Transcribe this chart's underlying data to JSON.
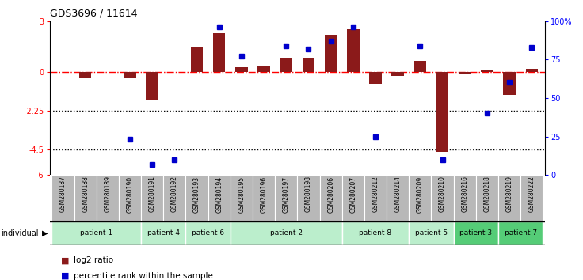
{
  "title": "GDS3696 / 11614",
  "samples": [
    "GSM280187",
    "GSM280188",
    "GSM280189",
    "GSM280190",
    "GSM280191",
    "GSM280192",
    "GSM280193",
    "GSM280194",
    "GSM280195",
    "GSM280196",
    "GSM280197",
    "GSM280198",
    "GSM280206",
    "GSM280207",
    "GSM280212",
    "GSM280214",
    "GSM280209",
    "GSM280210",
    "GSM280216",
    "GSM280218",
    "GSM280219",
    "GSM280222"
  ],
  "log2_ratio": [
    0.0,
    -0.35,
    0.0,
    -0.35,
    -1.65,
    0.0,
    1.5,
    2.3,
    0.3,
    0.4,
    0.85,
    0.85,
    2.2,
    2.5,
    -0.65,
    -0.2,
    0.65,
    -4.65,
    -0.05,
    0.1,
    -1.3,
    0.2
  ],
  "percentile": [
    null,
    null,
    null,
    23,
    7,
    10,
    null,
    96,
    77,
    null,
    84,
    82,
    87,
    96,
    25,
    null,
    84,
    10,
    null,
    40,
    60,
    83
  ],
  "patients": [
    {
      "label": "patient 1",
      "start": 0,
      "end": 4,
      "color": "#bbeecc"
    },
    {
      "label": "patient 4",
      "start": 4,
      "end": 6,
      "color": "#bbeecc"
    },
    {
      "label": "patient 6",
      "start": 6,
      "end": 8,
      "color": "#bbeecc"
    },
    {
      "label": "patient 2",
      "start": 8,
      "end": 13,
      "color": "#bbeecc"
    },
    {
      "label": "patient 8",
      "start": 13,
      "end": 16,
      "color": "#bbeecc"
    },
    {
      "label": "patient 5",
      "start": 16,
      "end": 18,
      "color": "#bbeecc"
    },
    {
      "label": "patient 3",
      "start": 18,
      "end": 20,
      "color": "#55cc77"
    },
    {
      "label": "patient 7",
      "start": 20,
      "end": 22,
      "color": "#55cc77"
    }
  ],
  "ylim_left": [
    -6,
    3
  ],
  "yticks_left": [
    3,
    0,
    -2.25,
    -4.5,
    -6
  ],
  "ytick_labels_left": [
    "3",
    "0",
    "-2.25",
    "-4.5",
    "-6"
  ],
  "yticks_right_pct": [
    0,
    25,
    50,
    75,
    100
  ],
  "ytick_labels_right": [
    "0",
    "25",
    "50",
    "75",
    "100%"
  ],
  "bar_color": "#8B1A1A",
  "dot_color": "#0000CC",
  "dotted_lines": [
    -2.25,
    -4.5
  ],
  "sample_bg": "#b8b8b8"
}
